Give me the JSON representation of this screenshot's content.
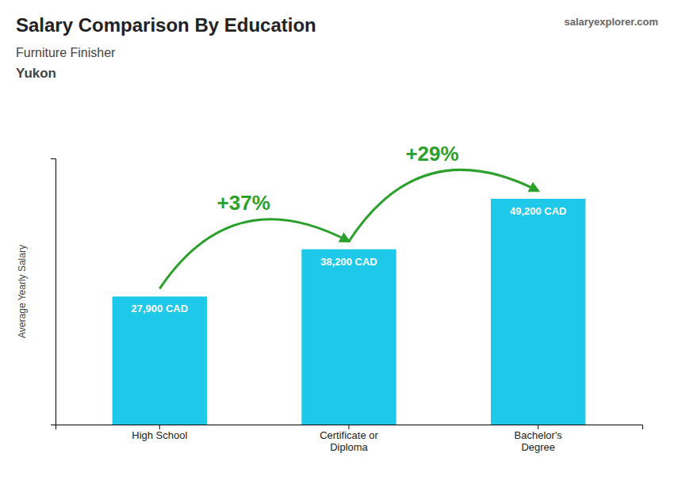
{
  "chart_data": {
    "type": "bar",
    "title": "Salary Comparison By Education",
    "subtitle": [
      "Furniture Finisher",
      "Yukon"
    ],
    "watermark": [
      "salary",
      "explorer",
      ".com"
    ],
    "y_label": "Average Yearly Salary",
    "categories": [
      "High School",
      "Certificate or\nDiploma",
      "Bachelor's\nDegree"
    ],
    "values": [
      27900,
      38200,
      49200
    ],
    "value_labels": [
      "27,900 CAD",
      "38,200 CAD",
      "49,200 CAD"
    ],
    "data_labels": true,
    "color": "#1EC8E8",
    "ylim": [
      0,
      58000
    ],
    "yticks": [],
    "tick_labels": "x",
    "grid": false,
    "annotations": [
      "+37%",
      "+29%"
    ]
  }
}
